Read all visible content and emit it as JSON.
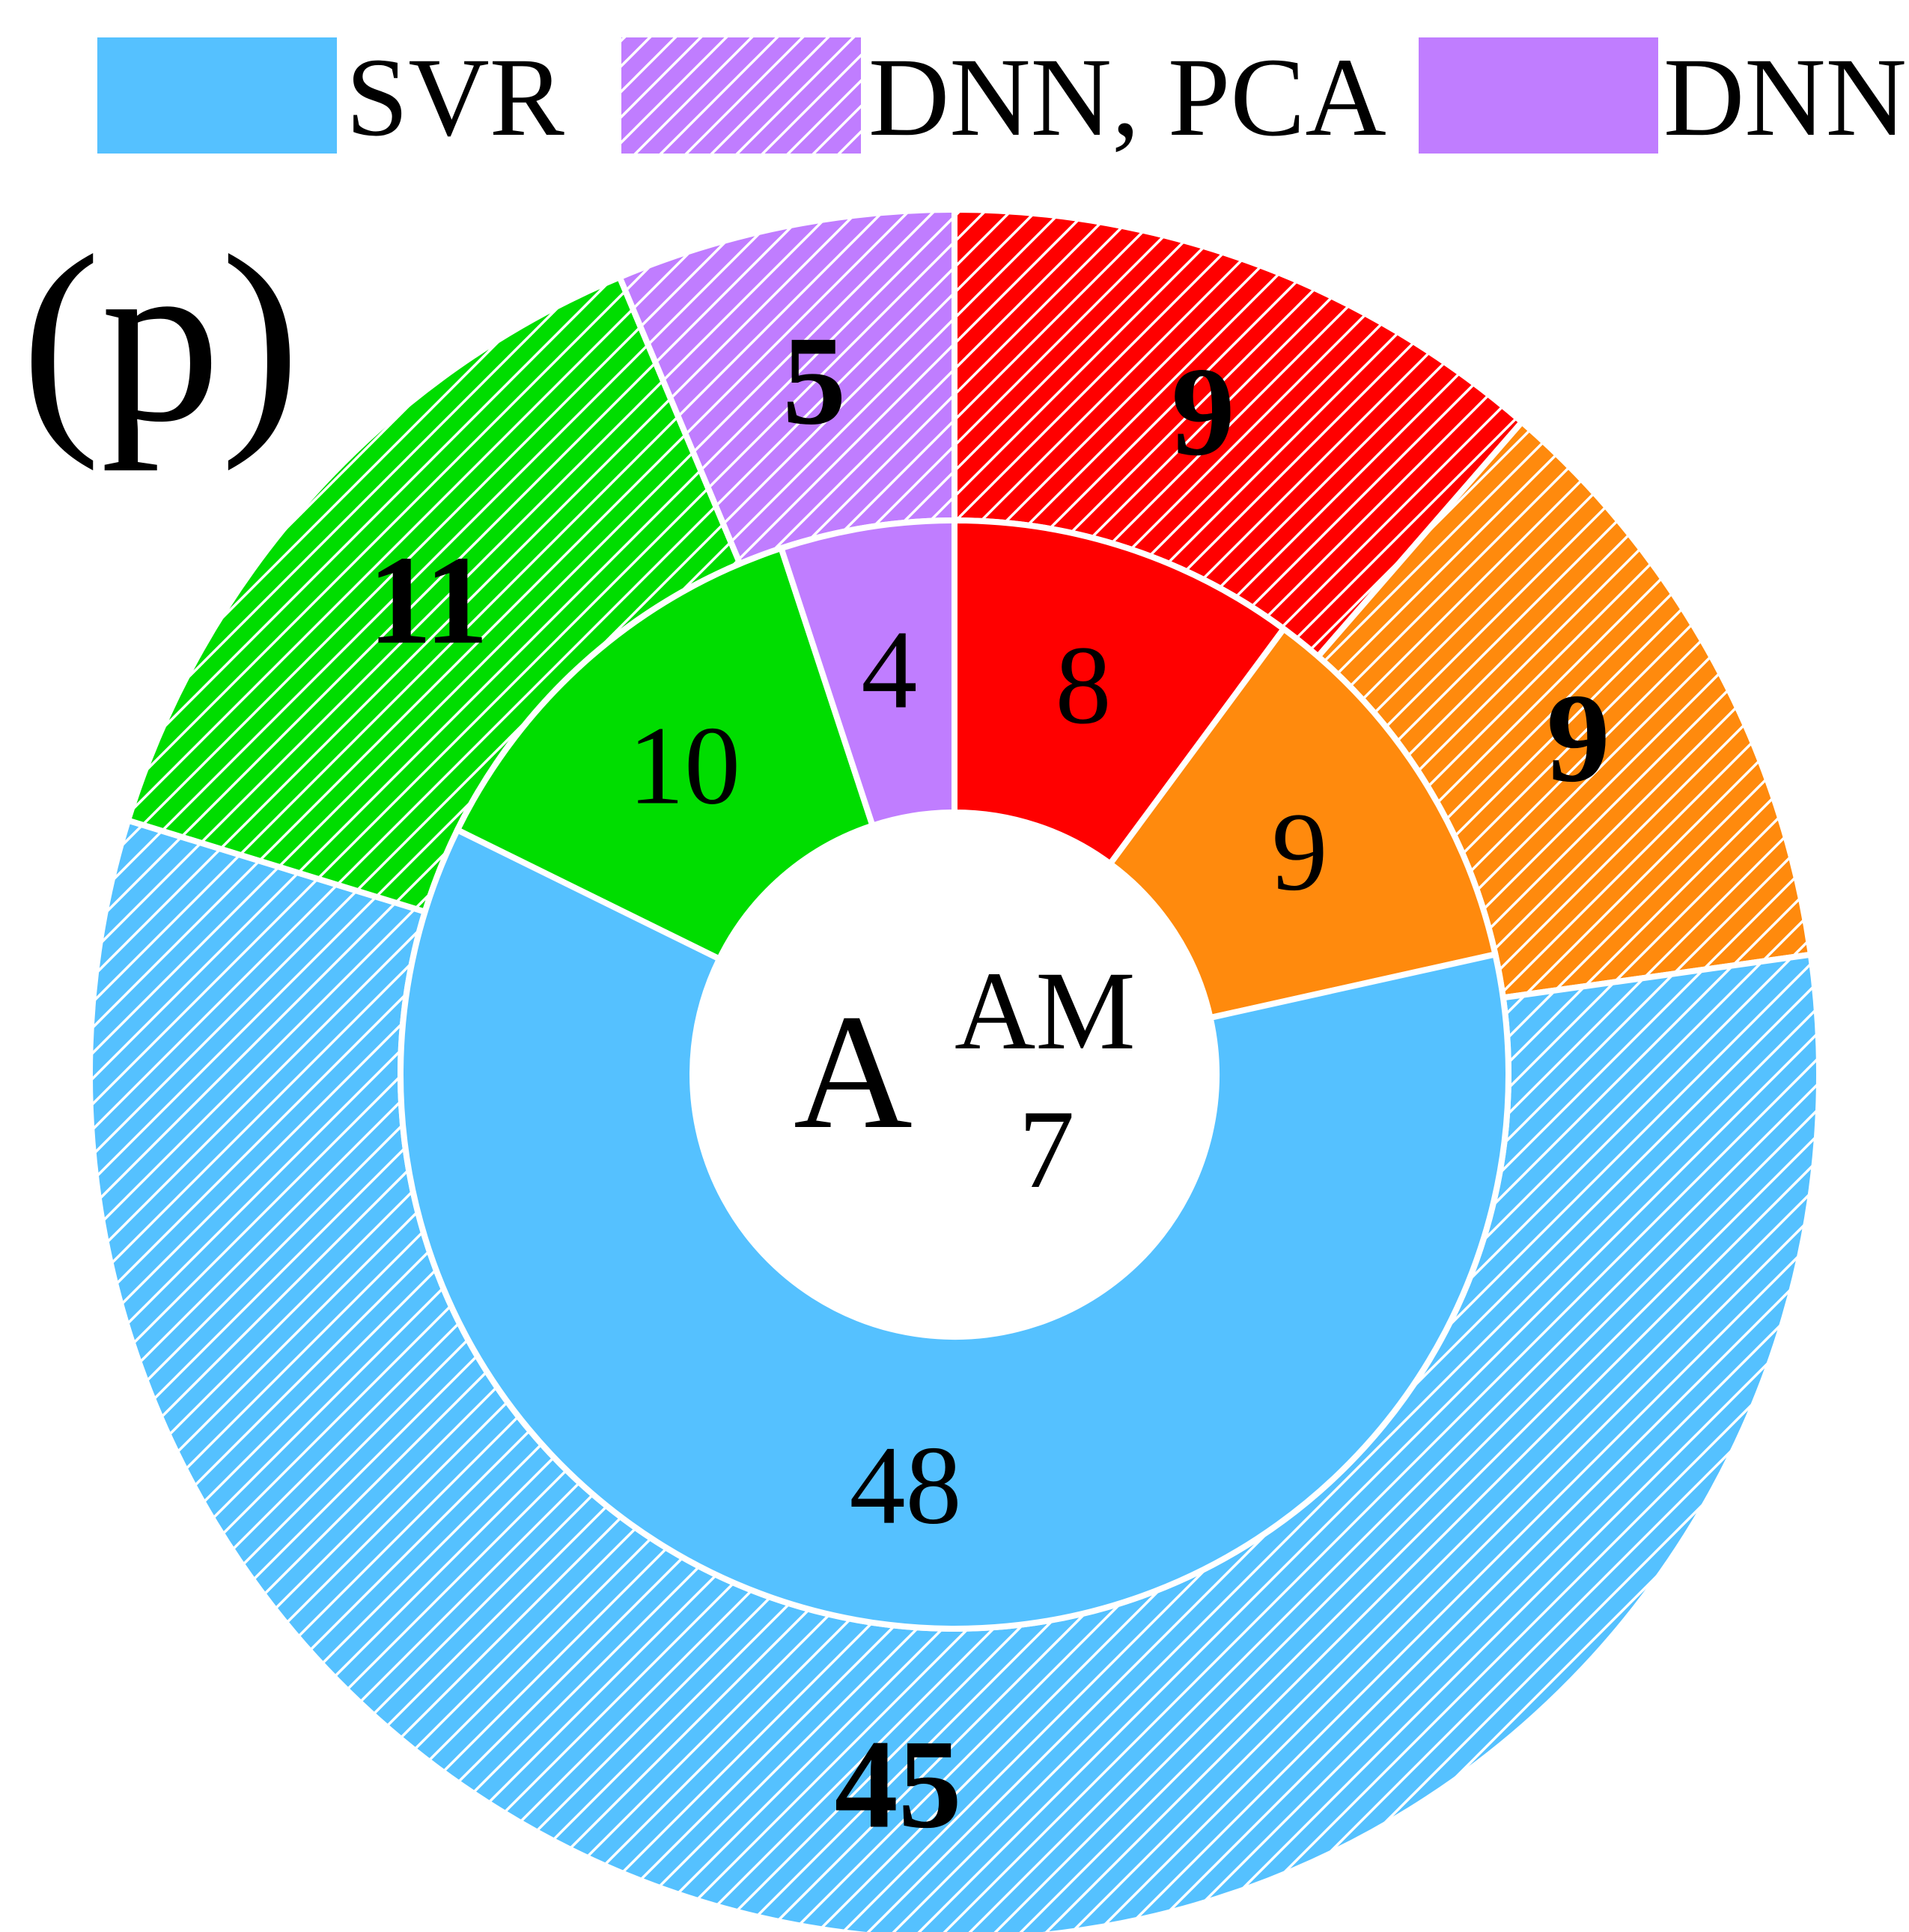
{
  "panel_label": "(p)",
  "chart_data": {
    "type": "pie",
    "variant": "nested-donut",
    "center_label": {
      "main": "A",
      "superscript": "AM",
      "subscript": "7"
    },
    "legend": [
      {
        "name": "SVR",
        "color": "#55c1ff",
        "hatched": false
      },
      {
        "name": "DNN, PCA",
        "color": "#c07dff",
        "hatched": true
      },
      {
        "name": "DNN",
        "color": "#c07dff",
        "hatched": false
      }
    ],
    "inner_ring": {
      "hatched": false,
      "slices": [
        {
          "value": 8,
          "label": "8",
          "color": "#ff0000"
        },
        {
          "value": 9,
          "label": "9",
          "color": "#ff8a0d"
        },
        {
          "value": 48,
          "label": "48",
          "color": "#55c1ff"
        },
        {
          "value": 10,
          "label": "10",
          "color": "#00dd00"
        },
        {
          "value": 4,
          "label": "4",
          "color": "#c07dff"
        }
      ]
    },
    "outer_ring": {
      "hatched": true,
      "slices": [
        {
          "value": 9,
          "label": "9",
          "color": "#ff0000"
        },
        {
          "value": 9,
          "label": "9",
          "color": "#ff8a0d"
        },
        {
          "value": 45,
          "label": "45",
          "color": "#55c1ff"
        },
        {
          "value": 11,
          "label": "11",
          "color": "#00dd00"
        },
        {
          "value": 5,
          "label": "5",
          "color": "#c07dff"
        }
      ]
    }
  }
}
